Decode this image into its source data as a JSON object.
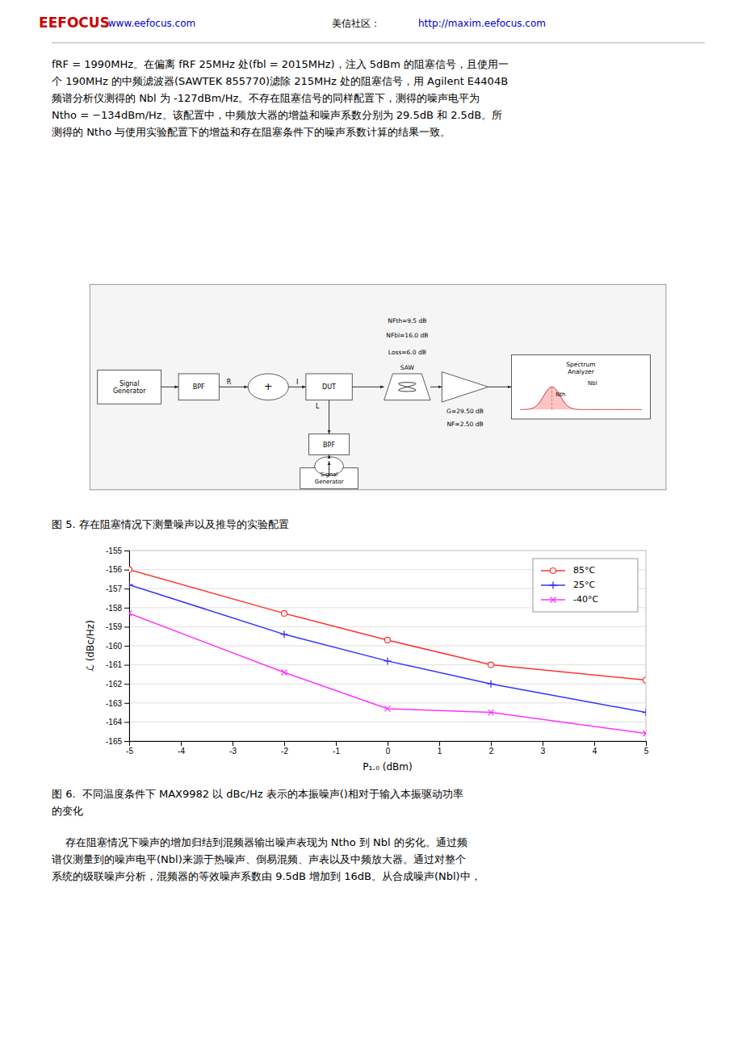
{
  "page_text": {
    "header": [
      "EEFOCUS",
      "www.eefocus.com",
      "美信社区：",
      "http://maxim.eefocus.com"
    ],
    "paragraphs": [
      "fRF = 1990MHz。在偏离 fRF 25MHz 处(fbl = 2015MHz)，注入 5dBm 的阻塞信号，且使用一\n个 190MHz 的中频滤波器(SAWTEK 855770)滤除 215MHz 处的阻塞信号，用 Agilent E4404B\n频谱分析仪测得的 Nbl 为 -127dBm/Hz。不存在阻塞信号的同样配置下，测得的噪声电平为\nNtho = −134dBm/Hz。该配置中，中频放大器的增益和噪声系数分别为 29.5dB 和 2.5dB。所\n测得的 Ntho 与使用实验配置下的增益和存在阻塞条件下的噪声系数计算的结果一致。",
      "    存在阻塞情况下噪声的增加归结到混频器输出噪声表现为 Ntho 到 Nbl 的劣化。通过频\n谱仪测量到的噪声电平(Nbl)来源于热噪声、倒易混频、声表以及中频放大器。通过对整个\n系统的级联噪声分析，混频器的等效噪声系数由 9.5dB 增加到 16dB。从合成噪声(Nbl)中，"
    ],
    "fig5_caption": "图 5.  存在阻塞情况下测量噪声以及推导的实验配置",
    "fig5_labels": [
      "Signal\nGenerator",
      "BPF",
      "R",
      "+",
      "I",
      "DUT",
      "L",
      "SAW",
      "NFth=9.5 dB",
      "NFbl=16.0 dB",
      "Loss=6.0 dB",
      "G=29.50 dB",
      "NF=2.50 dB",
      "Spectrum\nAnalyzer",
      "Nbl",
      "Nth",
      "BPF",
      "Signal\nGenerator"
    ]
  },
  "chart_data": {
    "type": "line",
    "title": "图 6.  不同温度条件下 MAX9982 以 dBc/Hz 表示的本振噪声()相对于输入本振驱动功率\n的变化",
    "xlabel": "P₁.₀ (dBm)",
    "ylabel": "ℒ (dBc/Hz)",
    "x": [
      -5,
      -2,
      0,
      2,
      5
    ],
    "xlim": [
      -5,
      5
    ],
    "ylim": [
      -165,
      -155
    ],
    "xticks": [
      -5,
      -4,
      -3,
      -2,
      -1,
      0,
      1,
      2,
      3,
      4,
      5
    ],
    "yticks": [
      -165,
      -164,
      -163,
      -162,
      -161,
      -160,
      -159,
      -158,
      -157,
      -156,
      -155
    ],
    "grid": true,
    "legend": "upper right",
    "series": [
      {
        "name": "85°C",
        "color": "#ff3333",
        "marker": "circle",
        "values": [
          -156.0,
          -158.3,
          -159.7,
          -161.0,
          -161.8
        ]
      },
      {
        "name": "25°C",
        "color": "#3333ff",
        "marker": "plus",
        "values": [
          -156.8,
          -159.4,
          -160.8,
          -162.0,
          -163.5
        ]
      },
      {
        "name": "-40°C",
        "color": "#ff33ff",
        "marker": "x",
        "values": [
          -158.3,
          -161.4,
          -163.3,
          -163.5,
          -164.6
        ]
      }
    ]
  }
}
